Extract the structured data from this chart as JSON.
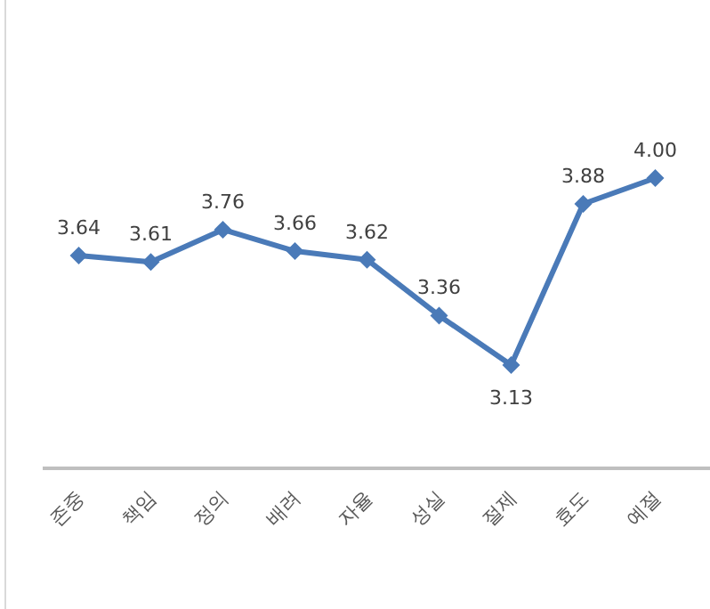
{
  "chart_data": {
    "type": "line",
    "categories": [
      "존중",
      "책임",
      "정의",
      "배려",
      "자율",
      "성실",
      "절제",
      "효도",
      "예절"
    ],
    "values": [
      3.64,
      3.61,
      3.76,
      3.66,
      3.62,
      3.36,
      3.13,
      3.88,
      4.0
    ],
    "value_labels": [
      "3.64",
      "3.61",
      "3.76",
      "3.66",
      "3.62",
      "3.36",
      "3.13",
      "3.88",
      "4.00"
    ],
    "color": "#4a7ab8",
    "marker": "diamond"
  }
}
